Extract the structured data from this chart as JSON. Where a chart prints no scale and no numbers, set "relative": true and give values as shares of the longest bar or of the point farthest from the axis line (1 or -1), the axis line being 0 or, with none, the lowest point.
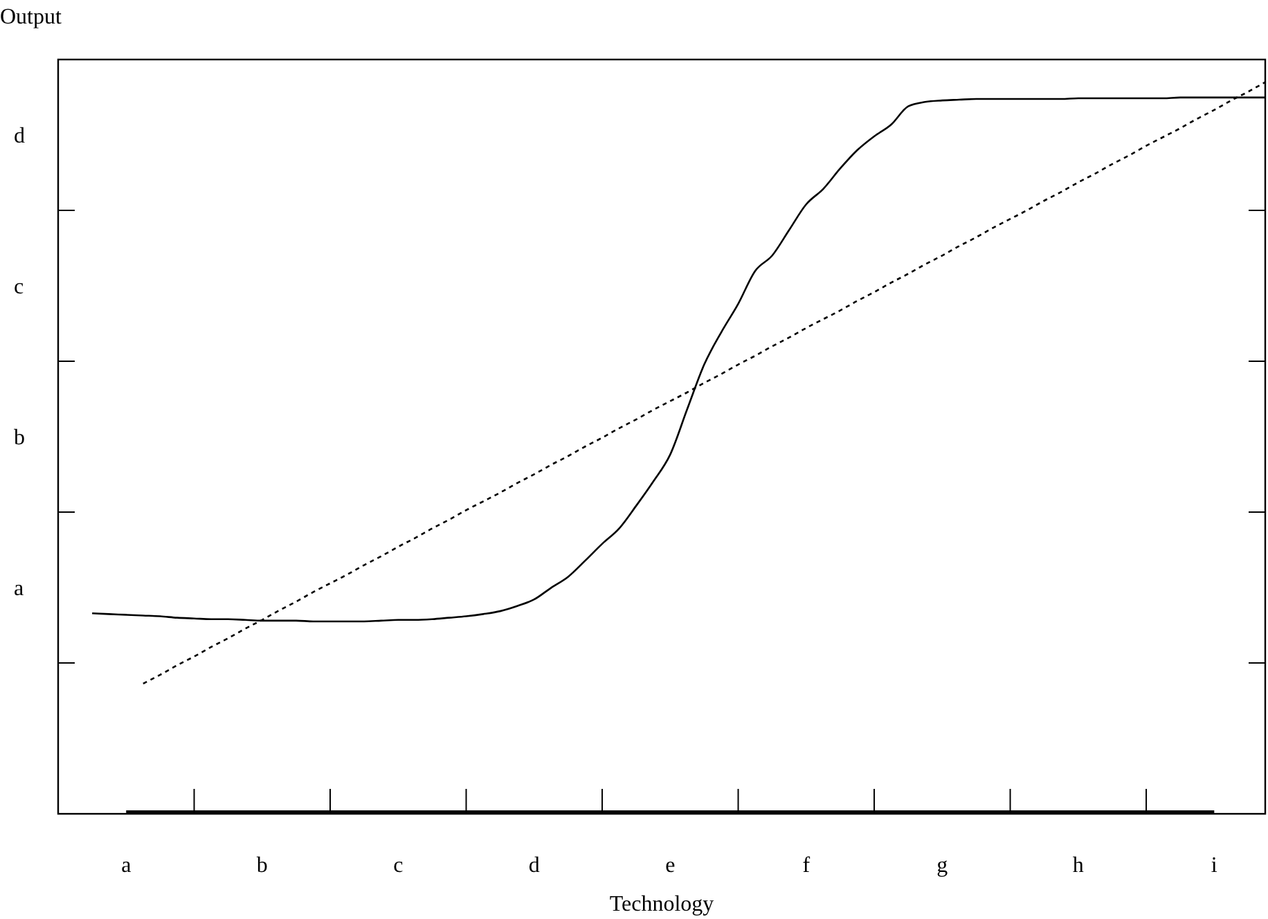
{
  "chart_data": {
    "type": "line",
    "xlabel": "Technology",
    "ylabel": "Output",
    "relative": true,
    "categories": [
      null,
      null,
      "a",
      null,
      null,
      null,
      null,
      null,
      null,
      null,
      "b",
      null,
      null,
      null,
      null,
      null,
      null,
      null,
      "c",
      null,
      null,
      null,
      null,
      null,
      null,
      null,
      "d",
      null,
      null,
      null,
      null,
      null,
      null,
      null,
      "e",
      null,
      null,
      null,
      null,
      null,
      null,
      null,
      "f",
      null,
      null,
      null,
      null,
      null,
      null,
      null,
      "g",
      null,
      null,
      null,
      null,
      null,
      null,
      null,
      "h",
      null,
      null,
      null,
      null,
      null,
      null,
      null,
      "i",
      null,
      null,
      null
    ],
    "annotations": [
      "a",
      "b",
      "c",
      "d"
    ],
    "series": [
      {
        "color": "#000000",
        "line_style": "solid",
        "values": [
          0.274,
          0.273,
          0.272,
          0.271,
          0.27,
          0.268,
          0.267,
          0.266,
          0.266,
          0.265,
          0.264,
          0.264,
          0.264,
          0.263,
          0.263,
          0.263,
          0.263,
          0.264,
          0.265,
          0.265,
          0.266,
          0.268,
          0.27,
          0.273,
          0.277,
          0.284,
          0.293,
          0.309,
          0.324,
          0.346,
          0.369,
          0.39,
          0.421,
          0.454,
          0.491,
          0.553,
          0.614,
          0.658,
          0.697,
          0.742,
          0.763,
          0.798,
          0.833,
          0.854,
          0.882,
          0.907,
          0.926,
          0.942,
          0.967,
          0.973,
          0.975,
          0.976,
          0.977,
          0.977,
          0.977,
          0.977,
          0.977,
          0.977,
          0.978,
          0.978,
          0.978,
          0.978,
          0.978,
          0.978,
          0.979,
          0.979,
          0.979,
          0.979,
          0.979,
          0.979
        ]
      },
      {
        "color": "#000000",
        "line_style": "dashed",
        "values": [
          null,
          null,
          null,
          0.178,
          0.19,
          0.203,
          0.215,
          0.228,
          0.24,
          0.253,
          0.265,
          0.278,
          0.29,
          0.303,
          0.315,
          0.327,
          0.34,
          0.352,
          0.365,
          0.377,
          0.39,
          0.402,
          0.415,
          0.427,
          0.439,
          0.452,
          0.464,
          0.477,
          0.489,
          0.502,
          0.514,
          0.527,
          0.539,
          0.552,
          0.564,
          0.576,
          0.589,
          0.601,
          0.614,
          0.626,
          0.639,
          0.651,
          0.664,
          0.676,
          0.688,
          0.701,
          0.713,
          0.726,
          0.738,
          0.751,
          0.763,
          0.776,
          0.788,
          0.801,
          0.813,
          0.825,
          0.838,
          0.85,
          0.863,
          0.875,
          0.888,
          0.9,
          0.913,
          0.925,
          0.937,
          0.95,
          0.962,
          0.975,
          0.987,
          1.0
        ]
      }
    ]
  }
}
